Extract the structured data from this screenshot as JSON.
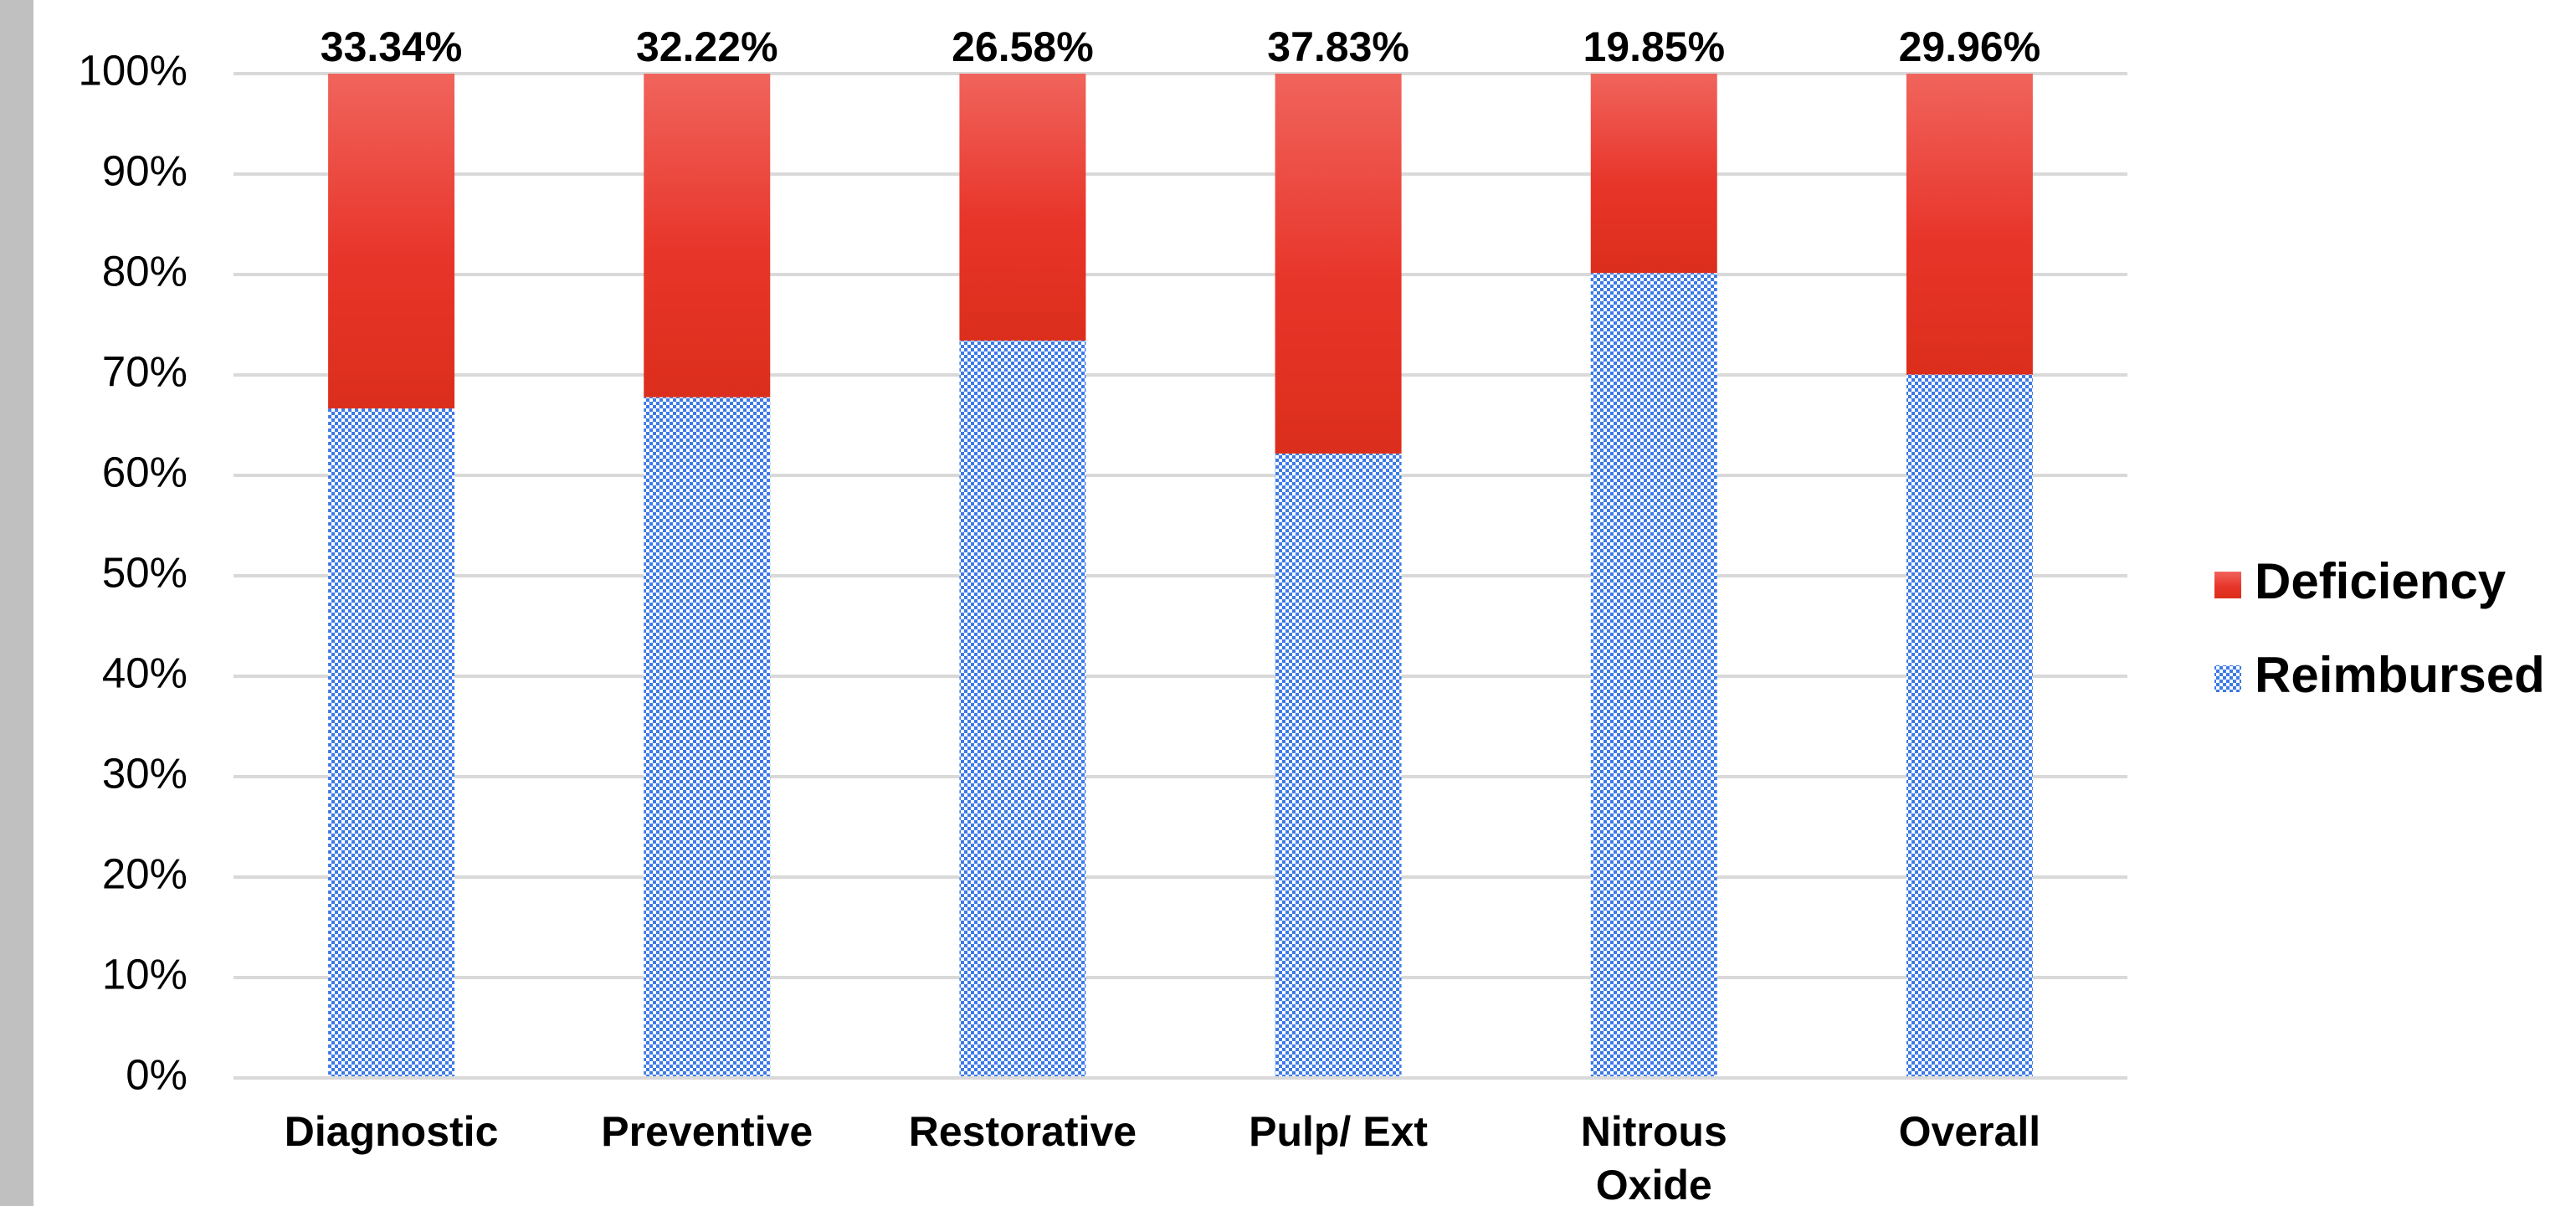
{
  "chart_data": {
    "type": "stacked_bar",
    "categories": [
      "Diagnostic",
      "Preventive",
      "Restorative",
      "Pulp/ Ext",
      "Nitrous Oxide",
      "Overall"
    ],
    "series": [
      {
        "name": "Reimbursed",
        "color": "#3d7ae6",
        "values": [
          66.66,
          67.78,
          73.42,
          62.17,
          80.15,
          70.04
        ]
      },
      {
        "name": "Deficiency",
        "color": "#e8352a",
        "values": [
          33.34,
          32.22,
          26.58,
          37.83,
          19.85,
          29.96
        ],
        "value_labels": [
          "33.34%",
          "32.22%",
          "26.58%",
          "37.83%",
          "19.85%",
          "29.96%"
        ]
      }
    ],
    "ylim": [
      0,
      100
    ],
    "yticks": [
      {
        "value": 0,
        "label": "0%"
      },
      {
        "value": 10,
        "label": "10%"
      },
      {
        "value": 20,
        "label": "20%"
      },
      {
        "value": 30,
        "label": "30%"
      },
      {
        "value": 40,
        "label": "40%"
      },
      {
        "value": 50,
        "label": "50%"
      },
      {
        "value": 60,
        "label": "60%"
      },
      {
        "value": 70,
        "label": "70%"
      },
      {
        "value": 80,
        "label": "80%"
      },
      {
        "value": 90,
        "label": "90%"
      },
      {
        "value": 100,
        "label": "100%"
      }
    ],
    "grid": true,
    "legend": "right"
  }
}
